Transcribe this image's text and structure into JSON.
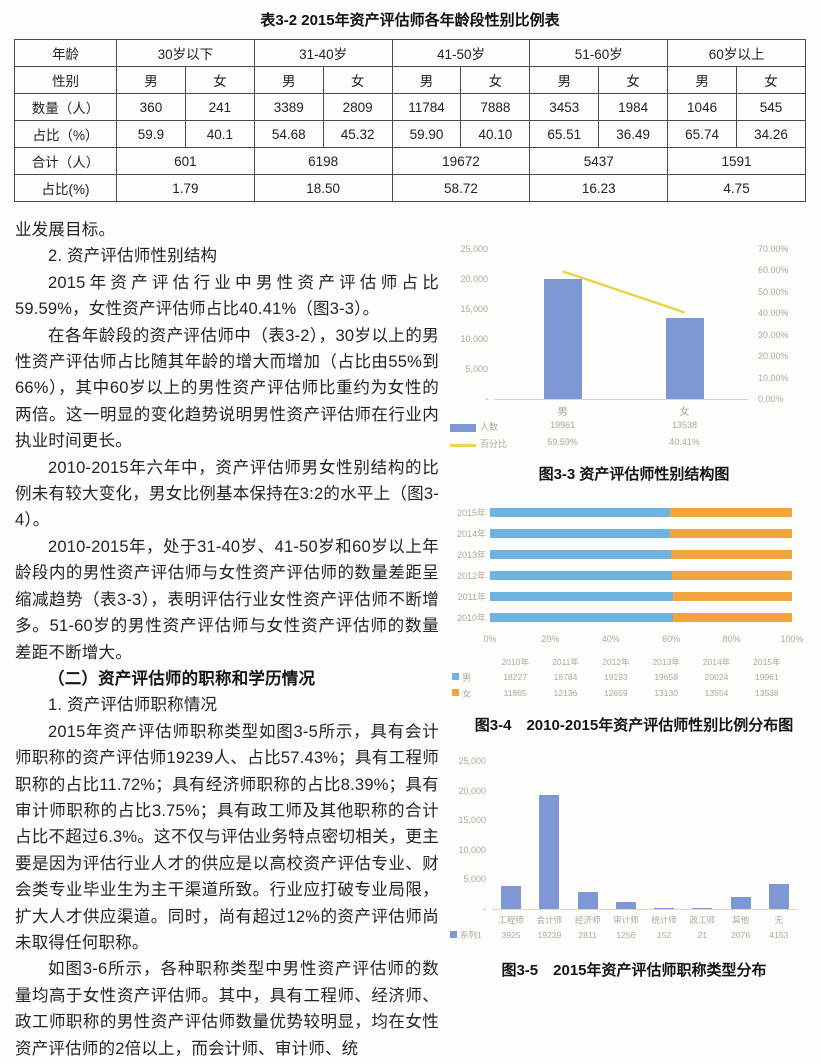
{
  "table": {
    "title": "表3-2 2015年资产评估师各年龄段性别比例表",
    "row_headers": [
      "年龄",
      "性别",
      "数量（人）",
      "占比（%）",
      "合计（人）",
      "占比(%)"
    ],
    "age_groups": [
      "30岁以下",
      "31-40岁",
      "41-50岁",
      "51-60岁",
      "60岁以上"
    ],
    "gender_labels": [
      "男",
      "女"
    ],
    "counts": [
      [
        "360",
        "241"
      ],
      [
        "3389",
        "2809"
      ],
      [
        "11784",
        "7888"
      ],
      [
        "3453",
        "1984"
      ],
      [
        "1046",
        "545"
      ]
    ],
    "percents": [
      [
        "59.9",
        "40.1"
      ],
      [
        "54.68",
        "45.32"
      ],
      [
        "59.90",
        "40.10"
      ],
      [
        "65.51",
        "36.49"
      ],
      [
        "65.74",
        "34.26"
      ]
    ],
    "totals": [
      "601",
      "6198",
      "19672",
      "5437",
      "1591"
    ],
    "total_percents": [
      "1.79",
      "18.50",
      "58.72",
      "16.23",
      "4.75"
    ]
  },
  "body": {
    "paragraphs": [
      {
        "style": "plain",
        "text": "业发展目标。"
      },
      {
        "style": "indent",
        "text": "2. 资产评估师性别结构"
      },
      {
        "style": "indent",
        "text": "2015年资产评估行业中男性资产评估师占比59.59%，女性资产评估师占比40.41%（图3-3）。"
      },
      {
        "style": "indent",
        "text": "在各年龄段的资产评估师中（表3-2），30岁以上的男性资产评估师占比随其年龄的增大而增加（占比由55%到66%），其中60岁以上的男性资产评估师比重约为女性的两倍。这一明显的变化趋势说明男性资产评估师在行业内执业时间更长。"
      },
      {
        "style": "indent",
        "text": "2010-2015年六年中，资产评估师男女性别结构的比例未有较大变化，男女比例基本保持在3:2的水平上（图3-4）。"
      },
      {
        "style": "indent",
        "text": "2010-2015年，处于31-40岁、41-50岁和60岁以上年龄段内的男性资产评估师与女性资产评估师的数量差距呈缩减趋势（表3-3），表明评估行业女性资产评估师不断增多。51-60岁的男性资产评估师与女性资产评估师的数量差距不断增大。"
      },
      {
        "style": "heading",
        "text": "（二）资产评估师的职称和学历情况"
      },
      {
        "style": "indent",
        "text": "1. 资产评估师职称情况"
      },
      {
        "style": "indent",
        "text": "2015年资产评估师职称类型如图3-5所示，具有会计师职称的资产评估师19239人、占比57.43%；具有工程师职称的占比11.72%；具有经济师职称的占比8.39%；具有审计师职称的占比3.75%；具有政工师及其他职称的合计占比不超过6.3%。这不仅与评估业务特点密切相关，更主要是因为评估行业人才的供应是以高校资产评估专业、财会类专业毕业生为主干渠道所致。行业应打破专业局限，扩大人才供应渠道。同时，尚有超过12%的资产评估师尚未取得任何职称。"
      },
      {
        "style": "indent",
        "text": "如图3-6所示，各种职称类型中男性资产评估师的数量均高于女性资产评估师。其中，具有工程师、经济师、政工师职称的男性资产评估师数量优势较明显，均在女性资产评估师的2倍以上，而会计师、审计师、统"
      }
    ]
  },
  "chart_data": [
    {
      "id": "fig3-3",
      "type": "bar",
      "subtype": "bar-with-percent-line",
      "title": "图3-3 资产评估师性别结构图",
      "categories": [
        "男",
        "女"
      ],
      "series": [
        {
          "name": "人数",
          "type": "bar",
          "values": [
            19961,
            13538
          ],
          "labels": [
            "19961",
            "13538"
          ]
        },
        {
          "name": "百分比",
          "type": "line",
          "values": [
            59.59,
            40.41
          ],
          "labels": [
            "59.59%",
            "40.41%"
          ]
        }
      ],
      "left_axis": {
        "min": 0,
        "max": 25000,
        "ticks": [
          "25,000",
          "20,000",
          "15,000",
          "10,000",
          "5,000",
          "-"
        ]
      },
      "right_axis": {
        "min": 0,
        "max": 70,
        "ticks": [
          "70.00%",
          "60.00%",
          "50.00%",
          "40.00%",
          "30.00%",
          "20.00%",
          "10.00%",
          "0.00%"
        ]
      },
      "legend_position": "bottom-left"
    },
    {
      "id": "fig3-4",
      "type": "bar",
      "subtype": "horizontal-stacked-100",
      "title": "图3-4　2010-2015年资产评估师性别比例分布图",
      "categories": [
        "2010年",
        "2011年",
        "2012年",
        "2013年",
        "2014年",
        "2015年"
      ],
      "row_order_top_to_bottom": [
        "2015年",
        "2014年",
        "2013年",
        "2012年",
        "2011年",
        "2010年"
      ],
      "series": [
        {
          "name": "男",
          "values": [
            18227,
            18784,
            19193,
            19658,
            20024,
            19961
          ]
        },
        {
          "name": "女",
          "values": [
            11865,
            12136,
            12659,
            13130,
            13554,
            13538
          ]
        }
      ],
      "x_axis": {
        "min": 0,
        "max": 100,
        "ticks": [
          "0%",
          "20%",
          "40%",
          "60%",
          "80%",
          "100%"
        ]
      },
      "legend_position": "bottom-left-table"
    },
    {
      "id": "fig3-5",
      "type": "bar",
      "title": "图3-5　2015年资产评估师职称类型分布",
      "categories": [
        "工程师",
        "会计师",
        "经济师",
        "审计师",
        "统计师",
        "政工师",
        "其他",
        "无"
      ],
      "series": [
        {
          "name": "系列1",
          "values": [
            3925,
            19239,
            2811,
            1256,
            152,
            21,
            2076,
            4153
          ]
        }
      ],
      "left_axis": {
        "min": 0,
        "max": 25000,
        "ticks": [
          "25,000",
          "20,000",
          "15,000",
          "10,000",
          "5,000",
          "-"
        ]
      },
      "legend_position": "bottom-left"
    }
  ],
  "colors": {
    "bar_blue": "#7d98d5",
    "bar_sky": "#6fb3e0",
    "bar_orange": "#f3a53d",
    "line_yellow": "#eed34f",
    "chart_text": "#b3a697",
    "axis_line": "#ddd6cb"
  }
}
